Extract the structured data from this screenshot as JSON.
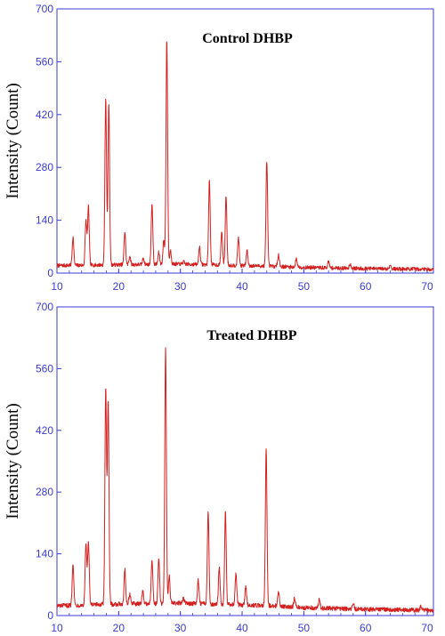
{
  "colors": {
    "axis": "#3b3bd6",
    "series": "#d42020",
    "background": "#ffffff"
  },
  "chart_data": [
    {
      "type": "line",
      "title": "Control DHBP",
      "xlabel": "",
      "ylabel": "Intensity (Count)",
      "xlim": [
        10,
        71
      ],
      "ylim": [
        0,
        700
      ],
      "xticks": [
        10,
        20,
        30,
        40,
        50,
        60,
        70
      ],
      "yticks": [
        0,
        140,
        280,
        420,
        560,
        700
      ],
      "grid": false,
      "baseline": [
        [
          10,
          20
        ],
        [
          20,
          22
        ],
        [
          30,
          24
        ],
        [
          35,
          22
        ],
        [
          40,
          20
        ],
        [
          45,
          18
        ],
        [
          50,
          15
        ],
        [
          60,
          12
        ],
        [
          71,
          10
        ]
      ],
      "peaks": [
        {
          "x": 12.6,
          "y": 95
        },
        {
          "x": 14.7,
          "y": 140
        },
        {
          "x": 15.1,
          "y": 175
        },
        {
          "x": 17.9,
          "y": 465
        },
        {
          "x": 18.4,
          "y": 450
        },
        {
          "x": 21.0,
          "y": 110
        },
        {
          "x": 21.8,
          "y": 45
        },
        {
          "x": 24.0,
          "y": 40
        },
        {
          "x": 25.4,
          "y": 185
        },
        {
          "x": 26.5,
          "y": 55
        },
        {
          "x": 27.3,
          "y": 85
        },
        {
          "x": 27.8,
          "y": 620
        },
        {
          "x": 28.4,
          "y": 60
        },
        {
          "x": 30.5,
          "y": 30
        },
        {
          "x": 33.1,
          "y": 70
        },
        {
          "x": 34.7,
          "y": 245
        },
        {
          "x": 36.7,
          "y": 110
        },
        {
          "x": 37.4,
          "y": 205
        },
        {
          "x": 39.4,
          "y": 95
        },
        {
          "x": 40.8,
          "y": 60
        },
        {
          "x": 44.0,
          "y": 300
        },
        {
          "x": 45.9,
          "y": 50
        },
        {
          "x": 48.8,
          "y": 38
        },
        {
          "x": 54.0,
          "y": 30
        },
        {
          "x": 57.5,
          "y": 25
        },
        {
          "x": 64.0,
          "y": 22
        }
      ]
    },
    {
      "type": "line",
      "title": "Treated DHBP",
      "xlabel": "",
      "ylabel": "Intensity (Count)",
      "xlim": [
        10,
        71
      ],
      "ylim": [
        0,
        700
      ],
      "xticks": [
        10,
        20,
        30,
        40,
        50,
        60,
        70
      ],
      "yticks": [
        0,
        140,
        280,
        420,
        560,
        700
      ],
      "grid": false,
      "baseline": [
        [
          10,
          22
        ],
        [
          20,
          26
        ],
        [
          30,
          28
        ],
        [
          35,
          26
        ],
        [
          40,
          24
        ],
        [
          45,
          22
        ],
        [
          50,
          18
        ],
        [
          60,
          14
        ],
        [
          71,
          12
        ]
      ],
      "peaks": [
        {
          "x": 12.6,
          "y": 120
        },
        {
          "x": 14.7,
          "y": 165
        },
        {
          "x": 15.1,
          "y": 165
        },
        {
          "x": 17.9,
          "y": 515
        },
        {
          "x": 18.3,
          "y": 485
        },
        {
          "x": 21.0,
          "y": 105
        },
        {
          "x": 21.8,
          "y": 50
        },
        {
          "x": 23.9,
          "y": 55
        },
        {
          "x": 25.4,
          "y": 125
        },
        {
          "x": 26.5,
          "y": 130
        },
        {
          "x": 27.6,
          "y": 605
        },
        {
          "x": 28.2,
          "y": 90
        },
        {
          "x": 30.5,
          "y": 40
        },
        {
          "x": 32.9,
          "y": 80
        },
        {
          "x": 34.5,
          "y": 238
        },
        {
          "x": 36.3,
          "y": 110
        },
        {
          "x": 37.3,
          "y": 235
        },
        {
          "x": 39.0,
          "y": 95
        },
        {
          "x": 40.6,
          "y": 65
        },
        {
          "x": 43.9,
          "y": 380
        },
        {
          "x": 45.9,
          "y": 55
        },
        {
          "x": 48.5,
          "y": 40
        },
        {
          "x": 52.5,
          "y": 35
        },
        {
          "x": 58.0,
          "y": 28
        },
        {
          "x": 69.0,
          "y": 22
        }
      ]
    }
  ]
}
